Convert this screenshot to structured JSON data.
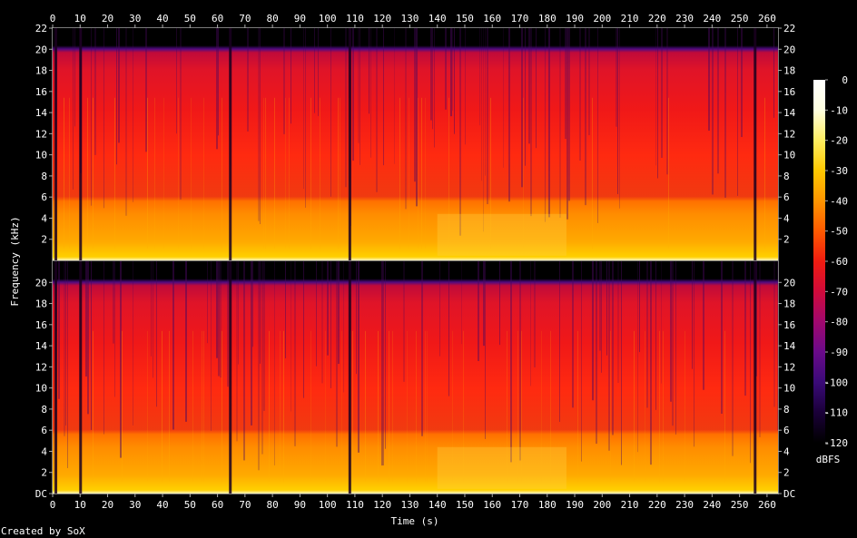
{
  "chart_data": {
    "type": "heatmap",
    "title": "",
    "xlabel": "Time (s)",
    "ylabel": "Frequency (kHz)",
    "x_ticks": [
      0,
      10,
      20,
      30,
      40,
      50,
      60,
      70,
      80,
      90,
      100,
      110,
      120,
      130,
      140,
      150,
      160,
      170,
      180,
      190,
      200,
      210,
      220,
      230,
      240,
      250,
      260
    ],
    "xlim": [
      0,
      264
    ],
    "y_ticks": [
      "DC",
      "2",
      "4",
      "6",
      "8",
      "10",
      "12",
      "14",
      "16",
      "18",
      "20",
      "22"
    ],
    "y_top_panel_bottom_tick": "2",
    "ylim_khz": [
      0,
      22
    ],
    "channels": [
      {
        "name": "",
        "panel": "top"
      },
      {
        "name": "",
        "panel": "bottom"
      }
    ],
    "colorbar": {
      "label": "dBFS",
      "ticks": [
        0,
        -10,
        -20,
        -30,
        -40,
        -50,
        -60,
        -70,
        -80,
        -90,
        -100,
        -110,
        -120
      ],
      "range": [
        -120,
        0
      ],
      "colors": [
        "#000000",
        "#1a0038",
        "#3a0a78",
        "#6a0a8a",
        "#a0086e",
        "#d00a3a",
        "#f01c10",
        "#ff5a00",
        "#ff9600",
        "#ffc800",
        "#ffee60",
        "#ffffe0",
        "#ffffff"
      ]
    },
    "features": {
      "bandwidth_cutoff_khz": 20,
      "low_band_bright_khz": 6,
      "short_silences_s": [
        1,
        10,
        64.5,
        108,
        255.5
      ],
      "brighter_region_s": [
        140,
        187
      ]
    }
  },
  "footer": {
    "credit": "Created by SoX"
  }
}
